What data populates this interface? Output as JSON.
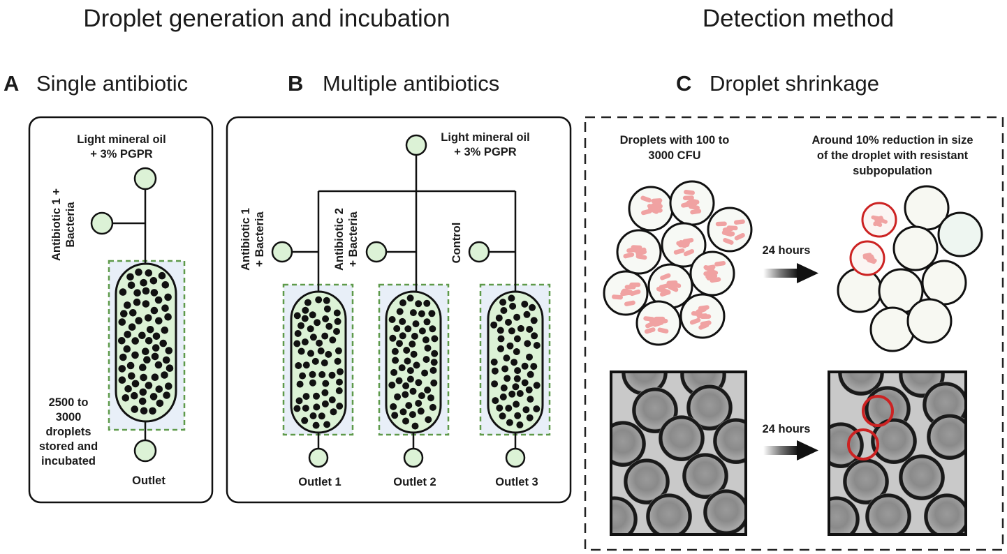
{
  "headers": {
    "left": "Droplet generation and incubation",
    "right": "Detection method"
  },
  "panels": {
    "A": {
      "letter": "A",
      "title": "Single antibiotic"
    },
    "B": {
      "letter": "B",
      "title": "Multiple antibiotics"
    },
    "C": {
      "letter": "C",
      "title": "Droplet shrinkage"
    }
  },
  "panel_a": {
    "oil_line1": "Light mineral oil",
    "oil_line2": "+ 3% PGPR",
    "antibiotic_line1": "Antibiotic 1 +",
    "antibiotic_line2": "Bacteria",
    "storage_lines": [
      "2500 to",
      "3000",
      "droplets",
      "stored and",
      "incubated"
    ],
    "outlet": "Outlet"
  },
  "panel_b": {
    "oil_line1": "Light mineral oil",
    "oil_line2": "+ 3% PGPR",
    "inlet1_line1": "Antibiotic 1",
    "inlet1_line2": "+ Bacteria",
    "inlet2_line1": "Antibiotic 2",
    "inlet2_line2": "+ Bacteria",
    "inlet3": "Control",
    "outlets": [
      "Outlet 1",
      "Outlet 2",
      "Outlet 3"
    ]
  },
  "panel_c": {
    "before_line1": "Droplets with 100 to",
    "before_line2": "3000 CFU",
    "after_line1": "Around 10% reduction in size",
    "after_line2": "of the droplet with resistant",
    "after_line3": "subpopulation",
    "arrow_label_top": "24 hours",
    "arrow_label_bottom": "24 hours"
  },
  "colors": {
    "chamber_fill": "#dcf2d6",
    "dashed_green": "#5e9a4a",
    "panel_bg_blue": "#e8eff8",
    "bacteria": "#f0a2a2",
    "resistant_ring": "#cc2222",
    "micro_bg": "#c9c9c9"
  }
}
